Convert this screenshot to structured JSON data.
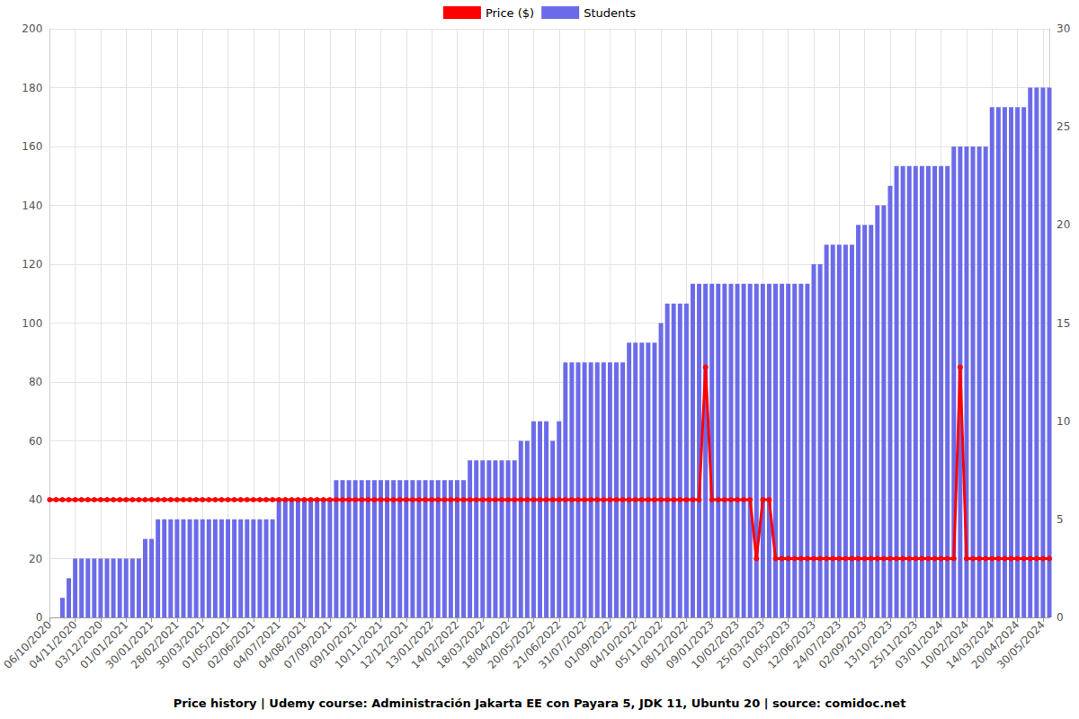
{
  "chart_data": {
    "type": "bar",
    "title": "Price history | Udemy course: Administración Jakarta EE con Payara 5, JDK 11, Ubuntu 20 | source: comidoc.net",
    "categories": [
      "06/10/2020",
      null,
      null,
      null,
      "04/11/2020",
      null,
      null,
      null,
      "03/12/2020",
      null,
      null,
      null,
      "01/01/2021",
      null,
      null,
      null,
      "30/01/2021",
      null,
      null,
      null,
      "28/02/2021",
      null,
      null,
      null,
      "30/03/2021",
      null,
      null,
      null,
      "01/05/2021",
      null,
      null,
      null,
      "02/06/2021",
      null,
      null,
      null,
      "04/07/2021",
      null,
      null,
      null,
      "04/08/2021",
      null,
      null,
      null,
      "07/09/2021",
      null,
      null,
      null,
      "09/10/2021",
      null,
      null,
      null,
      "10/11/2021",
      null,
      null,
      null,
      "12/12/2021",
      null,
      null,
      null,
      "13/01/2022",
      null,
      null,
      null,
      "14/02/2022",
      null,
      null,
      null,
      "18/03/2022",
      null,
      null,
      null,
      "18/04/2022",
      null,
      null,
      null,
      "20/05/2022",
      null,
      null,
      null,
      "21/06/2022",
      null,
      null,
      null,
      "31/07/2022",
      null,
      null,
      null,
      "01/09/2022",
      null,
      null,
      null,
      "04/10/2022",
      null,
      null,
      null,
      "05/11/2022",
      null,
      null,
      null,
      "08/12/2022",
      null,
      null,
      null,
      "09/01/2023",
      null,
      null,
      null,
      "10/02/2023",
      null,
      null,
      null,
      "25/03/2023",
      null,
      null,
      null,
      "01/05/2023",
      null,
      null,
      null,
      "12/06/2023",
      null,
      null,
      null,
      "24/07/2023",
      null,
      null,
      null,
      "02/09/2023",
      null,
      null,
      null,
      "13/10/2023",
      null,
      null,
      null,
      "25/11/2023",
      null,
      null,
      null,
      "03/01/2024",
      null,
      null,
      null,
      "10/02/2024",
      null,
      null,
      null,
      "14/03/2024",
      null,
      null,
      null,
      "20/04/2024",
      null,
      null,
      null,
      "30/05/2024",
      null
    ],
    "series": [
      {
        "name": "Price ($)",
        "type": "line",
        "color": "#ff0000",
        "marker": "circle",
        "values": [
          40,
          40,
          40,
          40,
          40,
          40,
          40,
          40,
          40,
          40,
          40,
          40,
          40,
          40,
          40,
          40,
          40,
          40,
          40,
          40,
          40,
          40,
          40,
          40,
          40,
          40,
          40,
          40,
          40,
          40,
          40,
          40,
          40,
          40,
          40,
          40,
          40,
          40,
          40,
          40,
          40,
          40,
          40,
          40,
          40,
          40,
          40,
          40,
          40,
          40,
          40,
          40,
          40,
          40,
          40,
          40,
          40,
          40,
          40,
          40,
          40,
          40,
          40,
          40,
          40,
          40,
          40,
          40,
          40,
          40,
          40,
          40,
          40,
          40,
          40,
          40,
          40,
          40,
          40,
          40,
          40,
          40,
          40,
          40,
          40,
          40,
          40,
          40,
          40,
          40,
          40,
          40,
          40,
          40,
          40,
          40,
          40,
          40,
          40,
          40,
          40,
          40,
          40,
          85,
          40,
          40,
          40,
          40,
          40,
          40,
          40,
          20,
          40,
          40,
          20,
          20,
          20,
          20,
          20,
          20,
          20,
          20,
          20,
          20,
          20,
          20,
          20,
          20,
          20,
          20,
          20,
          20,
          20,
          20,
          20,
          20,
          20,
          20,
          20,
          20,
          20,
          20,
          20,
          85,
          20,
          20,
          20,
          20,
          20,
          20,
          20,
          20,
          20,
          20,
          20,
          20,
          20,
          20
        ]
      },
      {
        "name": "Students",
        "type": "bar",
        "color": "#6b6bea",
        "axis": "y2",
        "values": [
          0,
          0,
          1,
          2,
          3,
          3,
          3,
          3,
          3,
          3,
          3,
          3,
          3,
          3,
          3,
          4,
          4,
          5,
          5,
          5,
          5,
          5,
          5,
          5,
          5,
          5,
          5,
          5,
          5,
          5,
          5,
          5,
          5,
          5,
          5,
          5,
          6,
          6,
          6,
          6,
          6,
          6,
          6,
          6,
          6,
          7,
          7,
          7,
          7,
          7,
          7,
          7,
          7,
          7,
          7,
          7,
          7,
          7,
          7,
          7,
          7,
          7,
          7,
          7,
          7,
          7,
          8,
          8,
          8,
          8,
          8,
          8,
          8,
          8,
          9,
          9,
          10,
          10,
          10,
          9,
          10,
          13,
          13,
          13,
          13,
          13,
          13,
          13,
          13,
          13,
          13,
          14,
          14,
          14,
          14,
          14,
          15,
          16,
          16,
          16,
          16,
          17,
          17,
          17,
          17,
          17,
          17,
          17,
          17,
          17,
          17,
          17,
          17,
          17,
          17,
          17,
          17,
          17,
          17,
          17,
          18,
          18,
          19,
          19,
          19,
          19,
          19,
          20,
          20,
          20,
          21,
          21,
          22,
          23,
          23,
          23,
          23,
          23,
          23,
          23,
          23,
          23,
          24,
          24,
          24,
          24,
          24,
          24,
          26,
          26,
          26,
          26,
          26,
          26,
          27,
          27,
          27,
          27
        ]
      }
    ],
    "ylim": [
      0,
      200
    ],
    "yticks": [
      0,
      20,
      40,
      60,
      80,
      100,
      120,
      140,
      160,
      180,
      200
    ],
    "y2lim": [
      0,
      30
    ],
    "y2ticks": [
      0,
      5,
      10,
      15,
      20,
      25,
      30
    ],
    "grid": true,
    "legend": "top"
  }
}
